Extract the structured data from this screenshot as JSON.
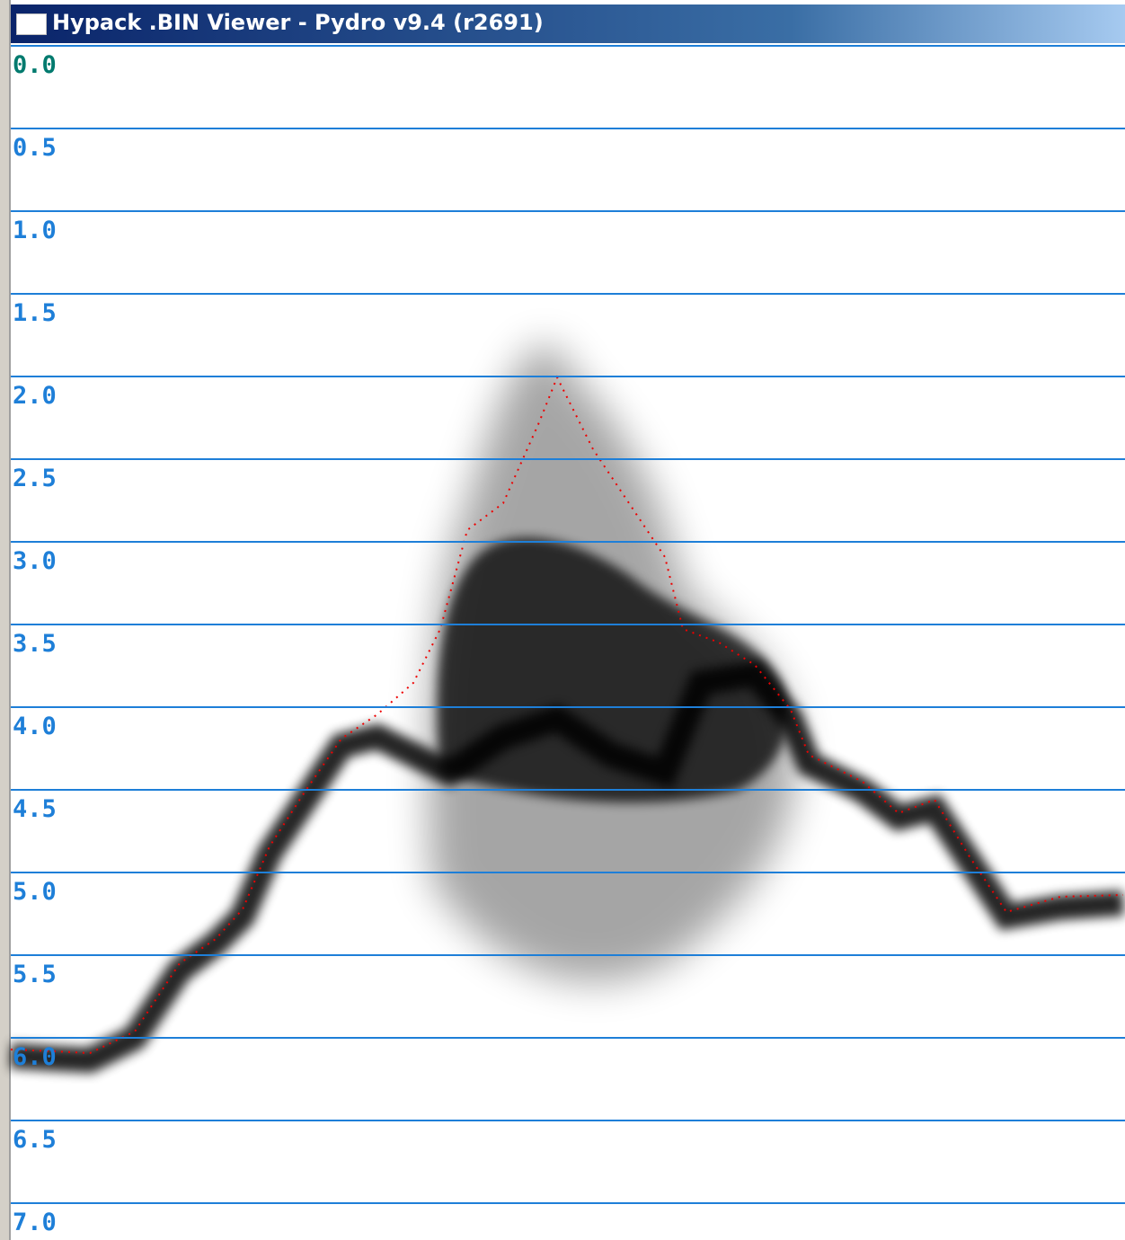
{
  "window": {
    "title": "Hypack .BIN Viewer - Pydro v9.4 (r2691)"
  },
  "depth_scale": {
    "labels": [
      "0.0",
      "0.5",
      "1.0",
      "1.5",
      "2.0",
      "2.5",
      "3.0",
      "3.5",
      "4.0",
      "4.5",
      "5.0",
      "5.5",
      "6.0",
      "6.5",
      "7.0"
    ]
  }
}
